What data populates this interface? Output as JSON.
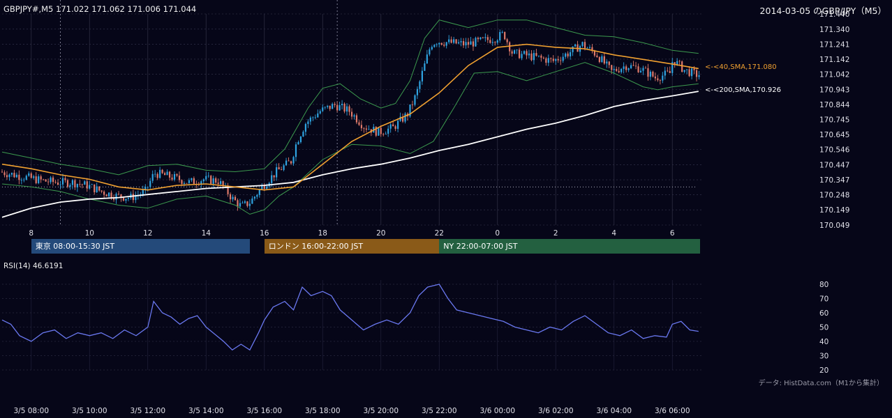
{
  "header": {
    "symbol_ohlc": "GBPJPY#,M5 171.022 171.062 171.006 171.044",
    "title": "2014-03-05 のGBP/JPY（M5）"
  },
  "colors": {
    "background": "#060618",
    "grid": "#3a3a52",
    "candle_up": "#2fa3e0",
    "candle_down": "#e07a6a",
    "bollinger": "#3c9a4e",
    "sma40": "#f0a030",
    "sma200": "#ffffff",
    "rsi": "#6a78f0",
    "tokyo": "#244a7a",
    "london": "#8a5a18",
    "ny": "#236040"
  },
  "sessions": [
    {
      "label": "東京 08:00-15:30 JST",
      "start_hour": 8.0,
      "end_hour": 15.5
    },
    {
      "label": "ロンドン 16:00-22:00 JST",
      "start_hour": 16.0,
      "end_hour": 22.0
    },
    {
      "label": "NY 22:00-07:00 JST",
      "start_hour": 22.0,
      "end_hour": 31.0
    }
  ],
  "rsi_label": "RSI(14) 46.6191",
  "sma40_label": "<-<40,SMA,171.080",
  "sma200_label": "<-<200,SMA,170.926",
  "footnote": "データ: HistData.com（M1から集計）",
  "chart_data": [
    {
      "type": "candlestick",
      "x_hour_ticks": [
        8,
        10,
        12,
        14,
        16,
        18,
        20,
        22,
        24,
        26,
        28,
        30
      ],
      "x_hour_tick_labels": [
        "8",
        "10",
        "12",
        "14",
        "16",
        "18",
        "20",
        "22",
        "0",
        "2",
        "4",
        "6"
      ],
      "y_ticks": [
        170.049,
        170.149,
        170.248,
        170.347,
        170.447,
        170.546,
        170.645,
        170.745,
        170.844,
        170.943,
        171.042,
        171.142,
        171.241,
        171.34,
        171.44
      ],
      "ylim": [
        170.049,
        171.44
      ],
      "xlim_hours": [
        7.0,
        31.0
      ],
      "reference_line_value": 170.3,
      "dashed_verticals_hours": [
        9.0,
        18.5
      ],
      "price_path": [
        [
          7.0,
          170.4
        ],
        [
          7.5,
          170.38
        ],
        [
          8.0,
          170.36
        ],
        [
          8.5,
          170.34
        ],
        [
          9.0,
          170.33
        ],
        [
          9.5,
          170.33
        ],
        [
          10.0,
          170.31
        ],
        [
          10.5,
          170.27
        ],
        [
          11.0,
          170.24
        ],
        [
          11.5,
          170.23
        ],
        [
          12.0,
          170.27
        ],
        [
          12.3,
          170.39
        ],
        [
          12.6,
          170.38
        ],
        [
          13.0,
          170.36
        ],
        [
          13.5,
          170.33
        ],
        [
          14.0,
          170.35
        ],
        [
          14.5,
          170.34
        ],
        [
          14.8,
          170.27
        ],
        [
          15.0,
          170.22
        ],
        [
          15.3,
          170.17
        ],
        [
          15.6,
          170.2
        ],
        [
          16.0,
          170.3
        ],
        [
          16.5,
          170.4
        ],
        [
          17.0,
          170.47
        ],
        [
          17.2,
          170.6
        ],
        [
          17.5,
          170.72
        ],
        [
          18.0,
          170.8
        ],
        [
          18.5,
          170.84
        ],
        [
          19.0,
          170.8
        ],
        [
          19.5,
          170.7
        ],
        [
          20.0,
          170.66
        ],
        [
          20.5,
          170.69
        ],
        [
          21.0,
          170.78
        ],
        [
          21.3,
          170.91
        ],
        [
          21.5,
          171.05
        ],
        [
          21.8,
          171.24
        ],
        [
          22.0,
          171.26
        ],
        [
          22.5,
          171.25
        ],
        [
          23.0,
          171.24
        ],
        [
          23.5,
          171.26
        ],
        [
          24.0,
          171.28
        ],
        [
          24.3,
          171.31
        ],
        [
          24.6,
          171.18
        ],
        [
          25.0,
          171.17
        ],
        [
          25.5,
          171.15
        ],
        [
          26.0,
          171.13
        ],
        [
          26.5,
          171.18
        ],
        [
          27.0,
          171.24
        ],
        [
          27.5,
          171.17
        ],
        [
          28.0,
          171.06
        ],
        [
          28.5,
          171.1
        ],
        [
          29.0,
          171.08
        ],
        [
          29.5,
          171.02
        ],
        [
          30.0,
          171.05
        ],
        [
          30.1,
          171.14
        ],
        [
          30.5,
          171.07
        ],
        [
          30.9,
          171.04
        ]
      ],
      "sma40_path": [
        [
          7.0,
          170.45
        ],
        [
          8.0,
          170.42
        ],
        [
          9.0,
          170.38
        ],
        [
          10.0,
          170.35
        ],
        [
          11.0,
          170.3
        ],
        [
          12.0,
          170.28
        ],
        [
          13.0,
          170.31
        ],
        [
          14.0,
          170.32
        ],
        [
          15.0,
          170.3
        ],
        [
          16.0,
          170.28
        ],
        [
          17.0,
          170.3
        ],
        [
          18.0,
          170.45
        ],
        [
          19.0,
          170.6
        ],
        [
          20.0,
          170.7
        ],
        [
          21.0,
          170.78
        ],
        [
          22.0,
          170.92
        ],
        [
          23.0,
          171.1
        ],
        [
          24.0,
          171.22
        ],
        [
          25.0,
          171.24
        ],
        [
          26.0,
          171.22
        ],
        [
          27.0,
          171.21
        ],
        [
          28.0,
          171.17
        ],
        [
          29.0,
          171.14
        ],
        [
          30.0,
          171.11
        ],
        [
          30.9,
          171.08
        ]
      ],
      "sma200_path": [
        [
          7.0,
          170.1
        ],
        [
          8.0,
          170.16
        ],
        [
          9.0,
          170.2
        ],
        [
          10.0,
          170.22
        ],
        [
          11.0,
          170.23
        ],
        [
          12.0,
          170.25
        ],
        [
          13.0,
          170.27
        ],
        [
          14.0,
          170.29
        ],
        [
          15.0,
          170.3
        ],
        [
          16.0,
          170.31
        ],
        [
          17.0,
          170.33
        ],
        [
          18.0,
          170.38
        ],
        [
          19.0,
          170.42
        ],
        [
          20.0,
          170.45
        ],
        [
          21.0,
          170.49
        ],
        [
          22.0,
          170.54
        ],
        [
          23.0,
          170.58
        ],
        [
          24.0,
          170.63
        ],
        [
          25.0,
          170.68
        ],
        [
          26.0,
          170.72
        ],
        [
          27.0,
          170.77
        ],
        [
          28.0,
          170.83
        ],
        [
          29.0,
          170.87
        ],
        [
          30.0,
          170.9
        ],
        [
          30.9,
          170.93
        ]
      ],
      "bb_upper_path": [
        [
          7.0,
          170.53
        ],
        [
          8.0,
          170.49
        ],
        [
          9.0,
          170.45
        ],
        [
          10.0,
          170.42
        ],
        [
          11.0,
          170.38
        ],
        [
          12.0,
          170.44
        ],
        [
          13.0,
          170.45
        ],
        [
          14.0,
          170.41
        ],
        [
          15.0,
          170.4
        ],
        [
          16.0,
          170.42
        ],
        [
          16.7,
          170.55
        ],
        [
          17.5,
          170.82
        ],
        [
          18.0,
          170.95
        ],
        [
          18.6,
          170.98
        ],
        [
          19.3,
          170.88
        ],
        [
          20.0,
          170.82
        ],
        [
          20.5,
          170.85
        ],
        [
          21.0,
          171.0
        ],
        [
          21.5,
          171.28
        ],
        [
          22.0,
          171.4
        ],
        [
          23.0,
          171.35
        ],
        [
          24.0,
          171.4
        ],
        [
          25.0,
          171.4
        ],
        [
          26.0,
          171.35
        ],
        [
          27.0,
          171.3
        ],
        [
          28.0,
          171.29
        ],
        [
          29.0,
          171.25
        ],
        [
          30.0,
          171.2
        ],
        [
          30.9,
          171.18
        ]
      ],
      "bb_lower_path": [
        [
          7.0,
          170.32
        ],
        [
          8.0,
          170.3
        ],
        [
          9.0,
          170.27
        ],
        [
          10.0,
          170.22
        ],
        [
          11.0,
          170.18
        ],
        [
          12.0,
          170.16
        ],
        [
          13.0,
          170.22
        ],
        [
          14.0,
          170.24
        ],
        [
          15.0,
          170.18
        ],
        [
          15.5,
          170.12
        ],
        [
          16.0,
          170.15
        ],
        [
          16.5,
          170.24
        ],
        [
          17.0,
          170.3
        ],
        [
          18.0,
          170.48
        ],
        [
          19.0,
          170.58
        ],
        [
          20.0,
          170.57
        ],
        [
          21.0,
          170.52
        ],
        [
          21.8,
          170.6
        ],
        [
          22.5,
          170.82
        ],
        [
          23.2,
          171.05
        ],
        [
          24.0,
          171.06
        ],
        [
          25.0,
          171.0
        ],
        [
          26.0,
          171.06
        ],
        [
          27.0,
          171.12
        ],
        [
          28.0,
          171.05
        ],
        [
          29.0,
          170.96
        ],
        [
          29.5,
          170.94
        ],
        [
          30.0,
          170.96
        ],
        [
          30.9,
          170.98
        ]
      ]
    },
    {
      "type": "line",
      "name": "RSI(14)",
      "y_ticks": [
        20,
        30,
        40,
        50,
        60,
        70,
        80
      ],
      "ylim": [
        20,
        80
      ],
      "x_time_labels": [
        "3/5 08:00",
        "3/5 10:00",
        "3/5 12:00",
        "3/5 14:00",
        "3/5 16:00",
        "3/5 18:00",
        "3/5 20:00",
        "3/5 22:00",
        "3/6 00:00",
        "3/6 02:00",
        "3/6 04:00",
        "3/6 06:00"
      ],
      "points": [
        [
          7.0,
          55
        ],
        [
          7.3,
          52
        ],
        [
          7.6,
          44
        ],
        [
          8.0,
          40
        ],
        [
          8.4,
          46
        ],
        [
          8.8,
          48
        ],
        [
          9.2,
          42
        ],
        [
          9.6,
          46
        ],
        [
          10.0,
          44
        ],
        [
          10.4,
          46
        ],
        [
          10.8,
          42
        ],
        [
          11.2,
          48
        ],
        [
          11.6,
          44
        ],
        [
          12.0,
          50
        ],
        [
          12.2,
          68
        ],
        [
          12.5,
          60
        ],
        [
          12.8,
          57
        ],
        [
          13.1,
          52
        ],
        [
          13.4,
          56
        ],
        [
          13.7,
          58
        ],
        [
          14.0,
          50
        ],
        [
          14.3,
          45
        ],
        [
          14.6,
          40
        ],
        [
          14.9,
          34
        ],
        [
          15.2,
          38
        ],
        [
          15.5,
          34
        ],
        [
          15.8,
          46
        ],
        [
          16.0,
          55
        ],
        [
          16.3,
          64
        ],
        [
          16.7,
          68
        ],
        [
          17.0,
          62
        ],
        [
          17.3,
          78
        ],
        [
          17.6,
          72
        ],
        [
          18.0,
          75
        ],
        [
          18.3,
          72
        ],
        [
          18.6,
          62
        ],
        [
          19.0,
          55
        ],
        [
          19.4,
          48
        ],
        [
          19.8,
          52
        ],
        [
          20.2,
          55
        ],
        [
          20.6,
          52
        ],
        [
          21.0,
          60
        ],
        [
          21.3,
          72
        ],
        [
          21.6,
          78
        ],
        [
          22.0,
          80
        ],
        [
          22.3,
          70
        ],
        [
          22.6,
          62
        ],
        [
          23.0,
          60
        ],
        [
          23.4,
          58
        ],
        [
          23.8,
          56
        ],
        [
          24.2,
          54
        ],
        [
          24.6,
          50
        ],
        [
          25.0,
          48
        ],
        [
          25.4,
          46
        ],
        [
          25.8,
          50
        ],
        [
          26.2,
          48
        ],
        [
          26.6,
          54
        ],
        [
          27.0,
          58
        ],
        [
          27.4,
          52
        ],
        [
          27.8,
          46
        ],
        [
          28.2,
          44
        ],
        [
          28.6,
          48
        ],
        [
          29.0,
          42
        ],
        [
          29.4,
          44
        ],
        [
          29.8,
          43
        ],
        [
          30.0,
          52
        ],
        [
          30.3,
          54
        ],
        [
          30.6,
          48
        ],
        [
          30.9,
          47
        ]
      ]
    }
  ]
}
